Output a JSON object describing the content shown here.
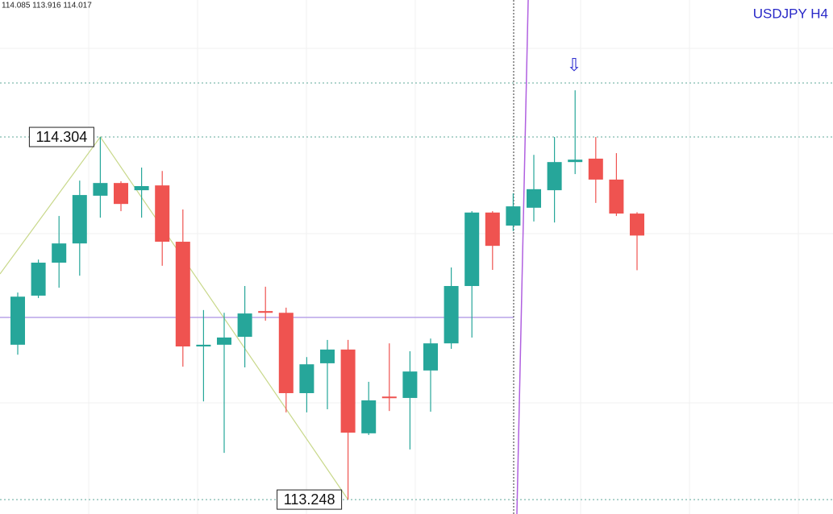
{
  "chart_data": {
    "type": "candlestick",
    "title": "USDJPY H4",
    "header": "114.085 113.916 114.017",
    "ylim": [
      113.206,
      114.703
    ],
    "up_color": "#26a69a",
    "down_color": "#ef5350",
    "zigzag": {
      "high": 114.304,
      "low": 113.248
    },
    "open": [
      113.699,
      113.842,
      113.938,
      113.994,
      114.133,
      114.17,
      114.149,
      114.163,
      113.999,
      113.694,
      113.699,
      113.722,
      113.797,
      113.792,
      113.558,
      113.645,
      113.685,
      113.441,
      113.548,
      113.544,
      113.624,
      113.703,
      113.87,
      114.084,
      114.046,
      114.098,
      114.149,
      114.231,
      114.241,
      114.18,
      114.081
    ],
    "high": [
      113.851,
      113.947,
      114.074,
      114.177,
      114.304,
      114.175,
      114.215,
      114.205,
      114.093,
      113.8,
      113.792,
      113.87,
      113.868,
      113.807,
      113.663,
      113.713,
      113.713,
      113.591,
      113.703,
      113.68,
      113.717,
      113.924,
      114.088,
      114.088,
      114.14,
      114.252,
      114.304,
      114.44,
      114.304,
      114.257,
      114.085
    ],
    "low": [
      113.67,
      113.835,
      113.865,
      113.9,
      114.069,
      114.088,
      114.069,
      113.929,
      113.635,
      113.534,
      113.384,
      113.633,
      113.769,
      113.502,
      113.502,
      113.511,
      113.248,
      113.436,
      113.506,
      113.394,
      113.504,
      113.687,
      113.72,
      113.917,
      114.03,
      114.058,
      114.055,
      114.196,
      114.112,
      114.074,
      113.916
    ],
    "close": [
      113.839,
      113.938,
      113.994,
      114.135,
      114.17,
      114.109,
      114.161,
      113.999,
      113.694,
      113.699,
      113.72,
      113.79,
      113.792,
      113.558,
      113.642,
      113.685,
      113.443,
      113.537,
      113.544,
      113.621,
      113.703,
      113.87,
      114.084,
      113.987,
      114.102,
      114.152,
      114.231,
      114.238,
      114.18,
      114.081,
      114.017
    ]
  }
}
